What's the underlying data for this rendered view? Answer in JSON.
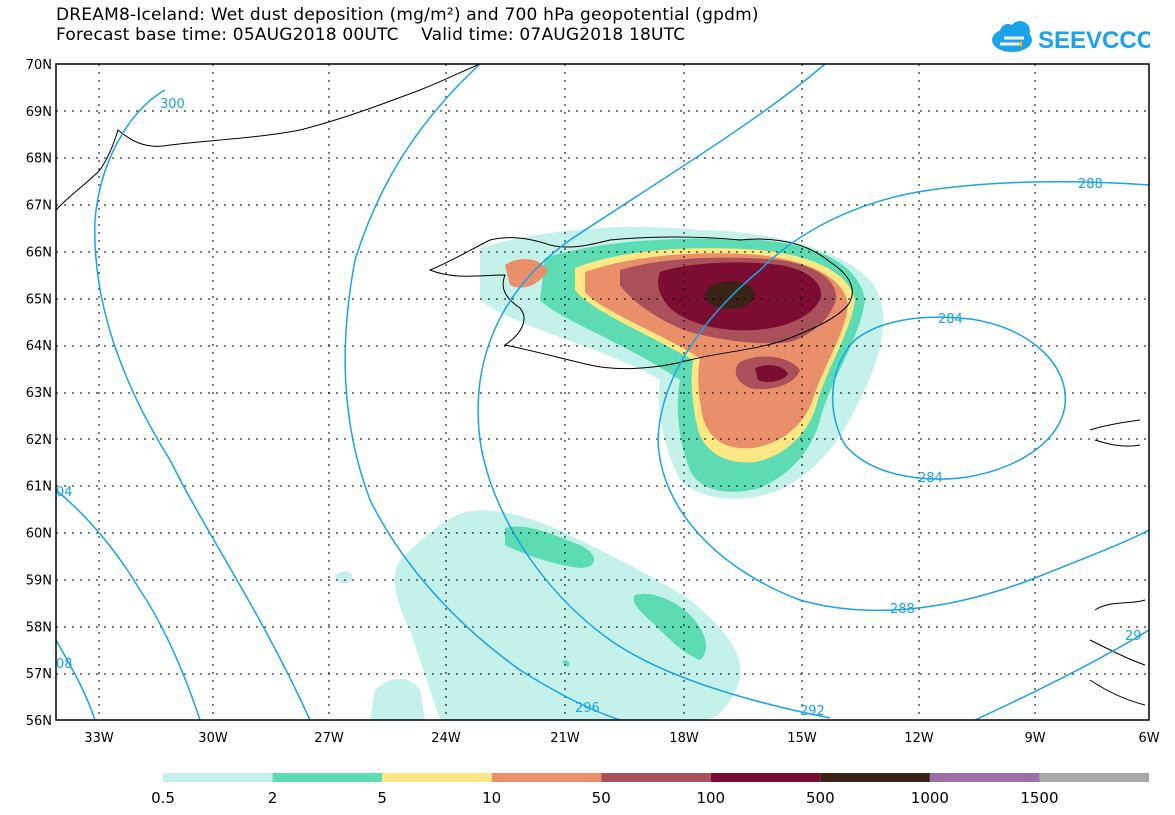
{
  "title_line1": "DREAM8-Iceland: Wet dust deposition (mg/m²) and 700 hPa geopotential (gpdm)",
  "title_line2": "Forecast base time: 05AUG2018 00UTC    Valid time: 07AUG2018 18UTC",
  "logo_text": "SEEVCCC",
  "y_axis": [
    "70N",
    "69N",
    "68N",
    "67N",
    "66N",
    "65N",
    "64N",
    "63N",
    "62N",
    "61N",
    "60N",
    "59N",
    "58N",
    "57N",
    "56N"
  ],
  "x_axis": [
    "33W",
    "30W",
    "27W",
    "24W",
    "21W",
    "18W",
    "15W",
    "12W",
    "9W",
    "6W"
  ],
  "contour_labels": [
    "300",
    "288",
    "284",
    "284",
    "288",
    "296",
    "292",
    "04",
    "08",
    "29"
  ],
  "legend": {
    "labels": [
      "0.5",
      "2",
      "5",
      "10",
      "50",
      "100",
      "500",
      "1000",
      "1500"
    ],
    "colors": [
      "#c4f1ea",
      "#5ddcb4",
      "#fbe784",
      "#e9906a",
      "#a9505a",
      "#7d0c32",
      "#3b2216",
      "#9c6fa6",
      "#a8a8a8"
    ]
  }
}
